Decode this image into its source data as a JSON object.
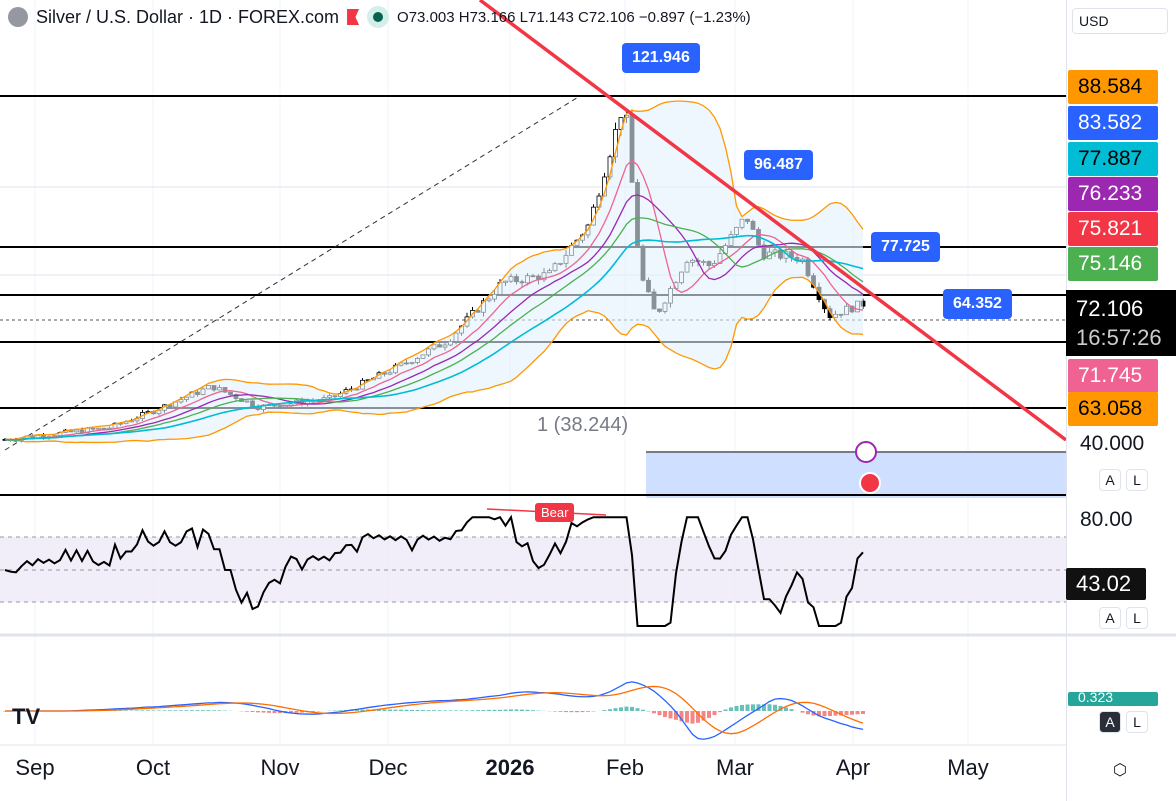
{
  "header": {
    "symbol": "Silver / U.S. Dollar · 1D · FOREX.com",
    "ohlc": "O73.003 H73.166 L71.143 C72.106 −0.897 (−1.23%)"
  },
  "currency": "USD",
  "price_labels": [
    {
      "value": "88.584",
      "bg": "#ff9800",
      "fg": "#000"
    },
    {
      "value": "83.582",
      "bg": "#2962ff",
      "fg": "#fff"
    },
    {
      "value": "77.887",
      "bg": "#00bcd4",
      "fg": "#000"
    },
    {
      "value": "76.233",
      "bg": "#9c27b0",
      "fg": "#fff"
    },
    {
      "value": "75.821",
      "bg": "#f23645",
      "fg": "#fff"
    },
    {
      "value": "75.146",
      "bg": "#4caf50",
      "fg": "#fff"
    }
  ],
  "current": {
    "price": "72.106",
    "countdown": "16:57:26"
  },
  "price_labels_low": [
    {
      "value": "71.745",
      "bg": "#f06292",
      "fg": "#fff"
    },
    {
      "value": "63.058",
      "bg": "#ff9800",
      "fg": "#000"
    }
  ],
  "axis_40": "40.000",
  "callouts": [
    "121.946",
    "96.487",
    "77.725",
    "64.352"
  ],
  "fib_label": "1 (38.244)",
  "rsi": {
    "level": "80.00",
    "value": "43.02",
    "divergence": "Bear"
  },
  "macd_value": "0.323",
  "scale_buttons": {
    "auto": "A",
    "log": "L"
  },
  "months": [
    "Sep",
    "Oct",
    "Nov",
    "Dec",
    "2026",
    "Feb",
    "Mar",
    "Apr",
    "May"
  ],
  "tv_logo": "TV",
  "chart_data": {
    "type": "candlestick",
    "keypoints": [
      [
        "2025-09-01",
        41
      ],
      [
        "2025-09-20",
        43
      ],
      [
        "2025-10-01",
        47
      ],
      [
        "2025-10-16",
        53
      ],
      [
        "2025-10-28",
        48
      ],
      [
        "2025-11-15",
        50
      ],
      [
        "2025-12-01",
        57
      ],
      [
        "2025-12-15",
        64
      ],
      [
        "2025-12-29",
        78
      ],
      [
        "2026-01-10",
        80
      ],
      [
        "2026-01-20",
        92
      ],
      [
        "2026-01-29",
        121.9
      ],
      [
        "2026-02-02",
        80
      ],
      [
        "2026-02-06",
        70
      ],
      [
        "2026-02-14",
        84
      ],
      [
        "2026-02-20",
        82
      ],
      [
        "2026-03-01",
        94
      ],
      [
        "2026-03-05",
        85
      ],
      [
        "2026-03-15",
        84
      ],
      [
        "2026-03-22",
        70
      ],
      [
        "2026-03-28",
        72
      ],
      [
        "2026-04-03",
        74
      ],
      [
        "2026-04-06",
        72.1
      ]
    ],
    "hlines": [
      88.584,
      75.821,
      72.106,
      63.058,
      40.0
    ]
  }
}
